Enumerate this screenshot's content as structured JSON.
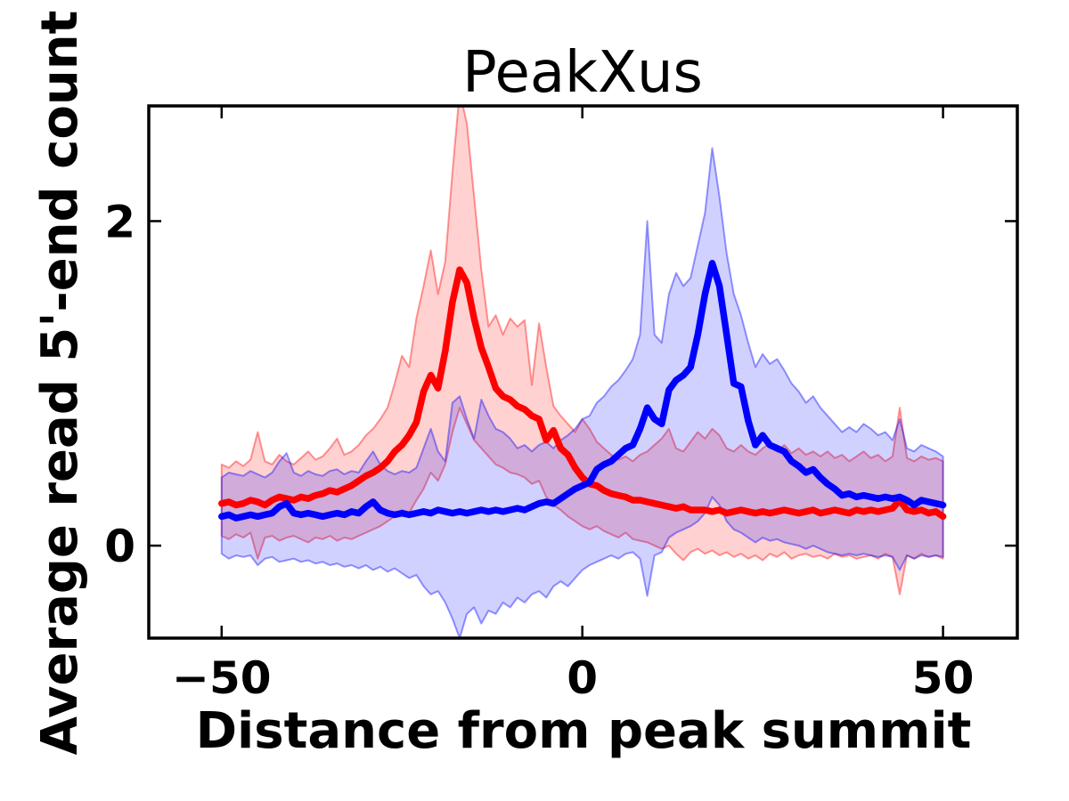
{
  "chart_data": {
    "type": "line",
    "title": "PeakXus",
    "xlabel": "Distance from peak summit",
    "ylabel": "Average read 5'-end count",
    "xlim": [
      -60.1,
      60.3
    ],
    "ylim": [
      -0.57,
      2.71
    ],
    "xticks": [
      -50,
      0,
      50
    ],
    "xtick_labels": [
      "−50",
      "0",
      "50"
    ],
    "yticks": [
      0,
      2
    ],
    "ytick_labels": [
      "0",
      "2"
    ],
    "grid": false,
    "legend": "none",
    "style": {
      "line_width": 7.5,
      "band_edge_width": 2,
      "band_fill_opacity": 0.18,
      "band_edge_opacity": 0.4,
      "spine_color": "#000000",
      "spine_width": 3.5,
      "tick_length": 14,
      "tick_width": 2.5
    },
    "x": [
      -50,
      -49,
      -48,
      -47,
      -46,
      -45,
      -44,
      -43,
      -42,
      -41,
      -40,
      -39,
      -38,
      -37,
      -36,
      -35,
      -34,
      -33,
      -32,
      -31,
      -30,
      -29,
      -28,
      -27,
      -26,
      -25,
      -24,
      -23,
      -22,
      -21,
      -20,
      -19,
      -18,
      -17,
      -16,
      -15,
      -14,
      -13,
      -12,
      -11,
      -10,
      -9,
      -8,
      -7,
      -6,
      -5,
      -4,
      -3,
      -2,
      -1,
      0,
      1,
      2,
      3,
      4,
      5,
      6,
      7,
      8,
      9,
      10,
      11,
      12,
      13,
      14,
      15,
      16,
      17,
      18,
      19,
      20,
      21,
      22,
      23,
      24,
      25,
      26,
      27,
      28,
      29,
      30,
      31,
      32,
      33,
      34,
      35,
      36,
      37,
      38,
      39,
      40,
      41,
      42,
      43,
      44,
      45,
      46,
      47,
      48,
      49,
      50
    ],
    "series": [
      {
        "name": "red",
        "color": "#ff0000",
        "mean": [
          0.26,
          0.27,
          0.25,
          0.26,
          0.28,
          0.27,
          0.25,
          0.28,
          0.3,
          0.29,
          0.28,
          0.3,
          0.29,
          0.31,
          0.32,
          0.34,
          0.33,
          0.35,
          0.37,
          0.4,
          0.43,
          0.45,
          0.48,
          0.52,
          0.58,
          0.62,
          0.68,
          0.76,
          0.95,
          1.05,
          0.97,
          1.2,
          1.5,
          1.7,
          1.62,
          1.4,
          1.22,
          1.1,
          0.97,
          0.92,
          0.9,
          0.86,
          0.84,
          0.8,
          0.78,
          0.65,
          0.71,
          0.6,
          0.56,
          0.48,
          0.42,
          0.38,
          0.37,
          0.34,
          0.32,
          0.31,
          0.3,
          0.28,
          0.28,
          0.27,
          0.26,
          0.25,
          0.24,
          0.23,
          0.24,
          0.22,
          0.22,
          0.22,
          0.21,
          0.22,
          0.2,
          0.21,
          0.22,
          0.21,
          0.2,
          0.21,
          0.2,
          0.21,
          0.22,
          0.21,
          0.2,
          0.21,
          0.22,
          0.2,
          0.21,
          0.22,
          0.21,
          0.2,
          0.22,
          0.21,
          0.22,
          0.21,
          0.22,
          0.23,
          0.28,
          0.22,
          0.21,
          0.22,
          0.2,
          0.21,
          0.18
        ],
        "upper": [
          0.5,
          0.48,
          0.52,
          0.49,
          0.53,
          0.7,
          0.52,
          0.5,
          0.56,
          0.52,
          0.5,
          0.54,
          0.58,
          0.53,
          0.55,
          0.6,
          0.66,
          0.56,
          0.58,
          0.62,
          0.68,
          0.72,
          0.78,
          0.85,
          1.0,
          1.17,
          1.1,
          1.4,
          1.6,
          1.82,
          1.55,
          1.75,
          2.3,
          2.8,
          2.6,
          2.15,
          1.7,
          1.35,
          1.42,
          1.3,
          1.4,
          1.35,
          1.39,
          0.99,
          1.37,
          1.1,
          0.86,
          0.8,
          0.75,
          0.7,
          0.78,
          0.72,
          0.64,
          0.6,
          0.56,
          0.53,
          0.55,
          0.52,
          0.56,
          0.58,
          0.62,
          0.66,
          0.72,
          0.6,
          0.58,
          0.64,
          0.7,
          0.66,
          0.72,
          0.68,
          0.6,
          0.58,
          0.62,
          0.58,
          0.56,
          0.6,
          0.63,
          0.58,
          0.62,
          0.57,
          0.6,
          0.56,
          0.58,
          0.55,
          0.58,
          0.54,
          0.56,
          0.52,
          0.55,
          0.58,
          0.54,
          0.56,
          0.52,
          0.55,
          0.85,
          0.54,
          0.52,
          0.55,
          0.53,
          0.54,
          0.52
        ],
        "lower": [
          0.06,
          0.04,
          0.07,
          0.05,
          0.08,
          -0.08,
          0.05,
          0.06,
          0.03,
          0.05,
          0.06,
          0.04,
          0.02,
          0.05,
          0.04,
          0.06,
          0.03,
          0.05,
          0.04,
          0.06,
          0.08,
          0.1,
          0.12,
          0.15,
          0.18,
          0.22,
          0.2,
          0.28,
          0.35,
          0.45,
          0.4,
          0.5,
          0.7,
          0.85,
          0.75,
          0.65,
          0.6,
          0.55,
          0.5,
          0.48,
          0.45,
          0.44,
          0.42,
          0.38,
          0.4,
          0.3,
          0.25,
          0.22,
          0.18,
          0.15,
          0.12,
          0.1,
          0.12,
          0.09,
          0.07,
          0.05,
          0.08,
          0.04,
          0.03,
          0.02,
          0.0,
          -0.02,
          0.0,
          -0.05,
          -0.09,
          -0.04,
          -0.02,
          -0.05,
          -0.03,
          -0.06,
          -0.04,
          -0.07,
          -0.05,
          -0.08,
          -0.06,
          -0.09,
          -0.05,
          -0.07,
          -0.04,
          -0.08,
          -0.06,
          -0.05,
          -0.07,
          -0.06,
          -0.08,
          -0.05,
          -0.07,
          -0.06,
          -0.08,
          -0.07,
          -0.06,
          -0.08,
          -0.05,
          -0.07,
          -0.3,
          -0.06,
          -0.08,
          -0.05,
          -0.07,
          -0.06,
          -0.08
        ]
      },
      {
        "name": "blue",
        "color": "#0000ff",
        "mean": [
          0.18,
          0.19,
          0.17,
          0.18,
          0.19,
          0.18,
          0.19,
          0.2,
          0.24,
          0.26,
          0.2,
          0.19,
          0.2,
          0.19,
          0.18,
          0.19,
          0.2,
          0.19,
          0.21,
          0.2,
          0.24,
          0.27,
          0.22,
          0.2,
          0.19,
          0.2,
          0.19,
          0.2,
          0.21,
          0.2,
          0.22,
          0.21,
          0.2,
          0.21,
          0.2,
          0.21,
          0.22,
          0.21,
          0.22,
          0.21,
          0.22,
          0.23,
          0.22,
          0.24,
          0.26,
          0.27,
          0.26,
          0.29,
          0.32,
          0.35,
          0.37,
          0.39,
          0.47,
          0.5,
          0.52,
          0.56,
          0.6,
          0.62,
          0.72,
          0.85,
          0.78,
          0.75,
          0.96,
          1.02,
          1.05,
          1.1,
          1.3,
          1.55,
          1.74,
          1.6,
          1.3,
          1.0,
          0.98,
          0.77,
          0.62,
          0.68,
          0.62,
          0.6,
          0.58,
          0.52,
          0.49,
          0.45,
          0.47,
          0.42,
          0.38,
          0.35,
          0.31,
          0.32,
          0.3,
          0.31,
          0.3,
          0.29,
          0.3,
          0.29,
          0.3,
          0.28,
          0.25,
          0.28,
          0.27,
          0.26,
          0.25
        ],
        "upper": [
          0.42,
          0.45,
          0.44,
          0.43,
          0.46,
          0.44,
          0.42,
          0.45,
          0.52,
          0.57,
          0.45,
          0.43,
          0.46,
          0.44,
          0.43,
          0.46,
          0.47,
          0.44,
          0.46,
          0.45,
          0.52,
          0.58,
          0.5,
          0.46,
          0.44,
          0.46,
          0.45,
          0.48,
          0.6,
          0.72,
          0.58,
          0.52,
          0.88,
          0.92,
          0.78,
          0.66,
          0.9,
          0.8,
          0.72,
          0.7,
          0.66,
          0.6,
          0.62,
          0.58,
          0.62,
          0.64,
          0.6,
          0.65,
          0.68,
          0.72,
          0.78,
          0.8,
          0.88,
          0.92,
          0.98,
          1.02,
          1.08,
          1.15,
          1.3,
          2.0,
          1.3,
          1.25,
          1.55,
          1.68,
          1.6,
          1.65,
          1.85,
          2.05,
          2.45,
          2.15,
          1.8,
          1.55,
          1.42,
          1.25,
          1.1,
          1.18,
          1.12,
          1.15,
          1.08,
          1.0,
          0.95,
          0.88,
          0.92,
          0.85,
          0.8,
          0.75,
          0.7,
          0.73,
          0.7,
          0.75,
          0.72,
          0.68,
          0.7,
          0.65,
          0.78,
          0.6,
          0.58,
          0.62,
          0.6,
          0.58,
          0.55
        ],
        "lower": [
          -0.05,
          -0.08,
          -0.06,
          -0.07,
          -0.06,
          -0.12,
          -0.08,
          -0.07,
          -0.1,
          -0.09,
          -0.08,
          -0.1,
          -0.09,
          -0.11,
          -0.1,
          -0.12,
          -0.11,
          -0.13,
          -0.12,
          -0.14,
          -0.12,
          -0.15,
          -0.13,
          -0.16,
          -0.14,
          -0.17,
          -0.2,
          -0.18,
          -0.25,
          -0.3,
          -0.28,
          -0.35,
          -0.45,
          -0.57,
          -0.42,
          -0.38,
          -0.48,
          -0.4,
          -0.42,
          -0.35,
          -0.38,
          -0.32,
          -0.35,
          -0.3,
          -0.28,
          -0.32,
          -0.25,
          -0.22,
          -0.25,
          -0.2,
          -0.15,
          -0.12,
          -0.1,
          -0.08,
          -0.06,
          -0.08,
          -0.05,
          -0.04,
          -0.08,
          -0.31,
          -0.06,
          -0.04,
          0.05,
          0.08,
          0.1,
          0.12,
          0.15,
          0.2,
          0.3,
          0.25,
          0.15,
          0.1,
          0.08,
          0.05,
          0.02,
          0.05,
          0.03,
          0.04,
          0.02,
          0.01,
          0.0,
          -0.02,
          0.0,
          -0.02,
          -0.04,
          -0.05,
          -0.06,
          -0.05,
          -0.06,
          -0.05,
          -0.06,
          -0.07,
          -0.06,
          -0.07,
          -0.15,
          -0.06,
          -0.08,
          -0.06,
          -0.07,
          -0.06,
          -0.07
        ]
      }
    ]
  }
}
